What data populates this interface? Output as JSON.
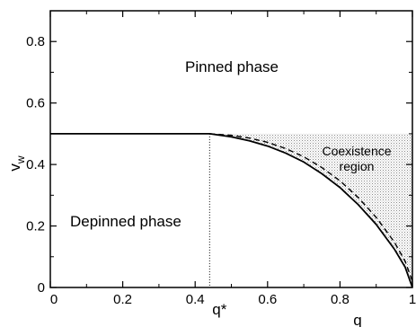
{
  "chart_data": {
    "type": "line",
    "xlabel": "q",
    "ylabel": "v",
    "ylabel_subscript": "w",
    "xlim": [
      0,
      1
    ],
    "ylim": [
      0,
      0.9
    ],
    "x_ticks": [
      0,
      0.2,
      0.4,
      0.6,
      0.8,
      1
    ],
    "x_tick_labels": [
      "0",
      "0.2",
      "0.4",
      "0.6",
      "0.8",
      "1"
    ],
    "y_ticks": [
      0,
      0.2,
      0.4,
      0.6,
      0.8
    ],
    "y_tick_labels": [
      "0",
      "0.2",
      "0.4",
      "0.6",
      "0.8"
    ],
    "q_star": 0.44,
    "q_star_label": "q*",
    "series": [
      {
        "style": "solid",
        "color": "#000000",
        "x": [
          0,
          0.44,
          0.5,
          0.55,
          0.6,
          0.65,
          0.7,
          0.75,
          0.8,
          0.85,
          0.9,
          0.95,
          0.98,
          1.0
        ],
        "y": [
          0.5,
          0.5,
          0.49,
          0.477,
          0.46,
          0.437,
          0.408,
          0.37,
          0.325,
          0.27,
          0.205,
          0.125,
          0.066,
          0.0
        ]
      },
      {
        "style": "dashed",
        "color": "#000000",
        "x": [
          0.44,
          0.5,
          0.55,
          0.6,
          0.65,
          0.7,
          0.75,
          0.8,
          0.85,
          0.9,
          0.95,
          0.98,
          1.0
        ],
        "y": [
          0.5,
          0.495,
          0.486,
          0.472,
          0.452,
          0.425,
          0.39,
          0.347,
          0.293,
          0.228,
          0.148,
          0.085,
          0.02
        ]
      }
    ],
    "coexistence_region": {
      "x_range": [
        0.44,
        1.0
      ],
      "y_top": 0.5,
      "fill": "stippled"
    },
    "annotations": {
      "pinned": "Pinned phase",
      "depinned": "Depinned phase",
      "coexistence_line1": "Coexistence",
      "coexistence_line2": "region"
    },
    "grid": false,
    "legend": "none"
  }
}
